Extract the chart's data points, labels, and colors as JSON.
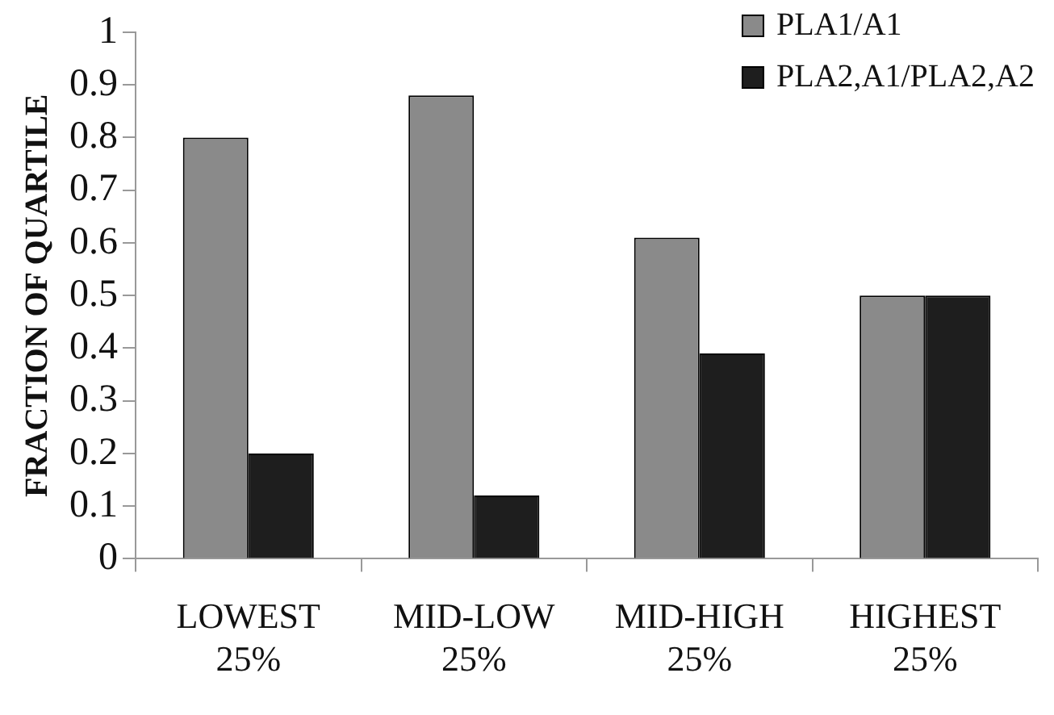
{
  "chart_data": {
    "type": "bar",
    "ylabel": "FRACTION OF QUARTILE",
    "categories": [
      "LOWEST 25%",
      "MID-LOW 25%",
      "MID-HIGH 25%",
      "HIGHEST 25%"
    ],
    "series": [
      {
        "name": "PLA1/A1",
        "color": "#8a8a8a",
        "values": [
          0.8,
          0.88,
          0.61,
          0.5
        ]
      },
      {
        "name": "PLA2,A1/PLA2,A2",
        "color": "#1e1e1e",
        "values": [
          0.2,
          0.12,
          0.39,
          0.5
        ]
      }
    ],
    "ylim": [
      0,
      1
    ],
    "yticks": [
      0,
      0.1,
      0.2,
      0.3,
      0.4,
      0.5,
      0.6,
      0.7,
      0.8,
      0.9,
      1
    ],
    "grid": false,
    "legend": "top right"
  }
}
